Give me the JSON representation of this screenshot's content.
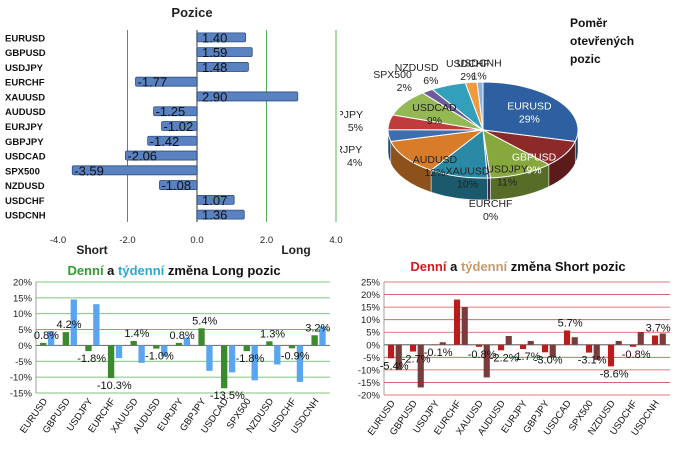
{
  "colors": {
    "bar_blue": "#5a82c0",
    "grid_green": "#55b055",
    "grid_red": "#d05050",
    "long_green": "#3c8a2e",
    "long_blue": "#5aa5f0",
    "short_red": "#b81c1c",
    "short_brown": "#7a3b3b",
    "title_red": "#d01c1c",
    "title_green": "#2e9e2e",
    "title_blue": "#2aa8d8",
    "title_orange": "#c89a6a"
  },
  "chart_data": [
    {
      "type": "bar",
      "orientation": "horizontal",
      "title": "Pozice",
      "categories": [
        "EURUSD",
        "GBPUSD",
        "USDJPY",
        "EURCHF",
        "XAUUSD",
        "AUDUSD",
        "EURJPY",
        "GBPJPY",
        "USDCAD",
        "SPX500",
        "NZDUSD",
        "USDCHF",
        "USDCNH"
      ],
      "values": [
        1.4,
        1.59,
        1.48,
        -1.77,
        2.9,
        -1.25,
        -1.02,
        -1.42,
        -2.06,
        -3.59,
        -1.08,
        1.07,
        1.36
      ],
      "value_labels": [
        "1.40",
        "1.59",
        "1.48",
        "-1.77",
        "2.90",
        "-1.25",
        "-1.02",
        "-1.42",
        "-2.06",
        "-3.59",
        "-1.08",
        "1.07",
        "1.36"
      ],
      "xlim": [
        -4.0,
        4.0
      ],
      "x_ticks": [
        "-4.0",
        "-2.0",
        "0.0",
        "2.0",
        "4.0"
      ],
      "short_label": "Short",
      "long_label": "Long"
    },
    {
      "type": "pie",
      "title": "Poměr otevřených pozic",
      "title_lines": [
        "Poměr",
        "otevřených",
        "pozic"
      ],
      "slices": [
        {
          "label": "EURUSD",
          "pct": "29%",
          "value": 29,
          "color": "#2e5fa0"
        },
        {
          "label": "GBPUSD",
          "pct": "9%",
          "value": 9,
          "color": "#8c2a2a"
        },
        {
          "label": "USDJPY",
          "pct": "11%",
          "value": 11,
          "color": "#86a83c"
        },
        {
          "label": "EURCHF",
          "pct": "0%",
          "value": 0.5,
          "color": "#5b3f86"
        },
        {
          "label": "XAUUSD",
          "pct": "10%",
          "value": 10,
          "color": "#2a8aa6"
        },
        {
          "label": "AUDUSD",
          "pct": "12%",
          "value": 12,
          "color": "#d97c2a"
        },
        {
          "label": "EURJPY",
          "pct": "4%",
          "value": 4,
          "color": "#3f6eb0"
        },
        {
          "label": "GBPJPY",
          "pct": "5%",
          "value": 5,
          "color": "#c03c3c"
        },
        {
          "label": "USDCAD",
          "pct": "9%",
          "value": 9,
          "color": "#94b854"
        },
        {
          "label": "SPX500",
          "pct": "2%",
          "value": 2,
          "color": "#6e5a9a"
        },
        {
          "label": "NZDUSD",
          "pct": "6%",
          "value": 6,
          "color": "#33a0bb"
        },
        {
          "label": "USDCHF",
          "pct": "2%",
          "value": 2,
          "color": "#f09a40"
        },
        {
          "label": "USDCNH",
          "pct": "1%",
          "value": 1,
          "color": "#8cb0e0"
        }
      ]
    },
    {
      "type": "bar",
      "title_parts": [
        "Denní",
        " a ",
        "týdenní",
        " změna Long pozic"
      ],
      "categories": [
        "EURUSD",
        "GBPUSD",
        "USDJPY",
        "EURCHF",
        "XAUUSD",
        "AUDUSD",
        "EURJPY",
        "GBPJPY",
        "USDCAD",
        "SPX500",
        "NZDUSD",
        "USDCHF",
        "USDCNH"
      ],
      "series": [
        {
          "values": [
            0.8,
            4.2,
            -1.8,
            -10.3,
            1.4,
            -1.0,
            0.8,
            5.4,
            -13.5,
            -1.8,
            1.3,
            -0.9,
            3.2
          ]
        },
        {
          "values": [
            4.5,
            14.5,
            13.0,
            -4.0,
            -5.5,
            -3.5,
            2.5,
            -8.0,
            -8.5,
            -11.0,
            -6.0,
            -11.5,
            6.0
          ]
        }
      ],
      "data_labels": [
        "0.8%",
        "4.2%",
        "-1.8%",
        "-10.3%",
        "1.4%",
        "-1.0%",
        "0.8%",
        "5.4%",
        "-13.5%",
        "-1.8%",
        "1.3%",
        "-0.9%",
        "3.2%"
      ],
      "ylim": [
        -15,
        20
      ],
      "y_ticks": [
        "20%",
        "15%",
        "10%",
        "5%",
        "0%",
        "-5%",
        "-10%",
        "-15%"
      ]
    },
    {
      "type": "bar",
      "title_parts": [
        "Denní",
        " a ",
        "týdenní",
        " změna Short pozic"
      ],
      "categories": [
        "EURUSD",
        "GBPUSD",
        "USDJPY",
        "EURCHF",
        "XAUUSD",
        "AUDUSD",
        "EURJPY",
        "GBPJPY",
        "USDCAD",
        "SPX500",
        "NZDUSD",
        "USDCHF",
        "USDCNH"
      ],
      "series": [
        {
          "values": [
            -5.4,
            -2.7,
            -0.1,
            18.0,
            -0.8,
            -2.2,
            -1.7,
            -3.0,
            5.7,
            -3.1,
            -8.6,
            -0.8,
            3.7
          ]
        },
        {
          "values": [
            -10.0,
            -17.0,
            1.0,
            15.0,
            -13.0,
            3.5,
            1.5,
            -5.0,
            3.0,
            -6.0,
            1.5,
            5.0,
            4.5
          ]
        }
      ],
      "data_labels": [
        "-5.4%",
        "-2.7%",
        "-0.1%",
        "",
        "-0.8%",
        "-2.2%",
        "-1.7%",
        "-3.0%",
        "5.7%",
        "-3.1%",
        "-8.6%",
        "-0.8%",
        "3.7%"
      ],
      "ylim": [
        -20,
        25
      ],
      "y_ticks": [
        "25%",
        "20%",
        "15%",
        "10%",
        "5%",
        "0%",
        "-5%",
        "-10%",
        "-15%",
        "-20%"
      ]
    }
  ]
}
